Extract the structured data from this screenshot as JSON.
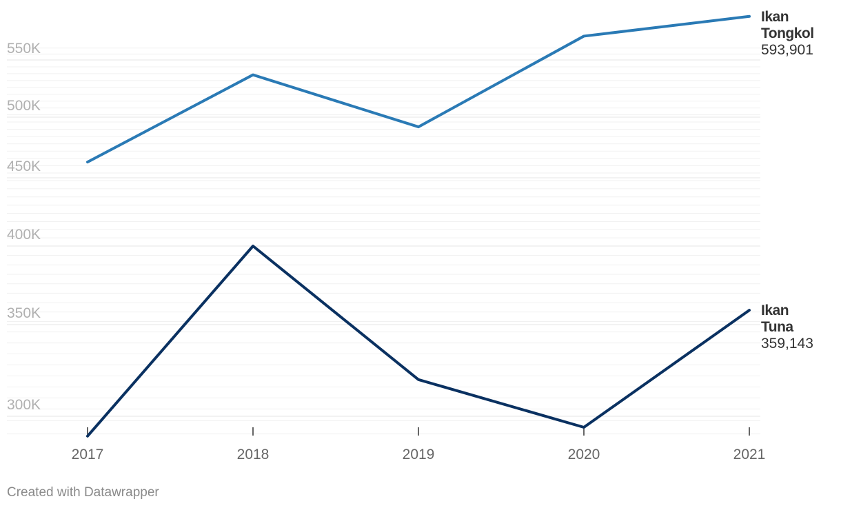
{
  "chart_data": {
    "type": "line",
    "categories": [
      "2017",
      "2018",
      "2019",
      "2020",
      "2021"
    ],
    "series": [
      {
        "name": "Ikan Tongkol",
        "name_lines": [
          "Ikan",
          "Tongkol"
        ],
        "values": [
          463000,
          537000,
          492000,
          574000,
          593901
        ],
        "end_label": "593,901",
        "color": "#2a7ab5"
      },
      {
        "name": "Ikan Tuna",
        "name_lines": [
          "Ikan",
          "Tuna"
        ],
        "values": [
          291000,
          400000,
          320000,
          295000,
          359143
        ],
        "end_label": "359,143",
        "color": "#0a3161"
      }
    ],
    "y_ticks": [
      {
        "value": 300000,
        "label": "300K"
      },
      {
        "value": 350000,
        "label": "350K"
      },
      {
        "value": 400000,
        "label": "400K"
      },
      {
        "value": 450000,
        "label": "450K"
      },
      {
        "value": 500000,
        "label": "500K"
      },
      {
        "value": 550000,
        "label": "550K"
      }
    ],
    "ylim": [
      290000,
      600000
    ],
    "grid": true,
    "title": "",
    "xlabel": "",
    "ylabel": ""
  },
  "credit": "Created with Datawrapper"
}
